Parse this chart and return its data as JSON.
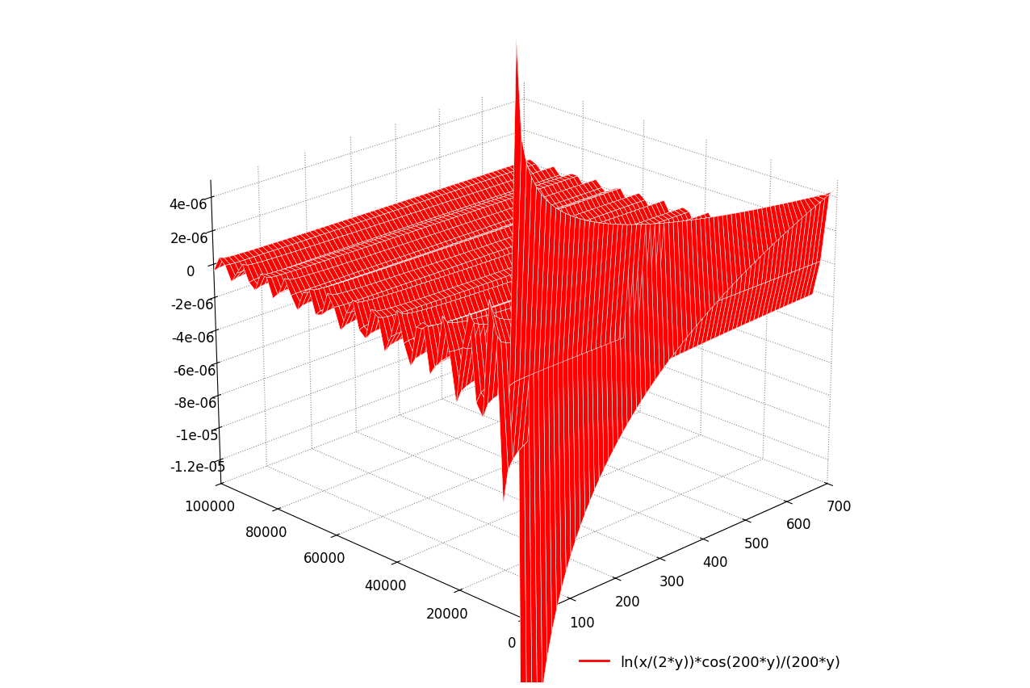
{
  "legend_label": "ln(x/(2*y))*cos(200*y)/(200*y)",
  "legend_color": "#ff0000",
  "x_range": [
    1,
    700
  ],
  "y_range": [
    200,
    100000
  ],
  "x_ticks": [
    100,
    200,
    300,
    400,
    500,
    600,
    700
  ],
  "y_ticks": [
    0,
    20000,
    40000,
    60000,
    80000,
    100000
  ],
  "z_ticks": [
    -1.2e-05,
    -1e-05,
    -8e-06,
    -6e-06,
    -4e-06,
    -2e-06,
    0,
    2e-06,
    4e-06
  ],
  "k": 200,
  "nx": 70,
  "ny": 50,
  "surface_color": "#ff0000",
  "edge_color": "#ffffff",
  "background_color": "#ffffff",
  "elev": 22,
  "azim": -135
}
